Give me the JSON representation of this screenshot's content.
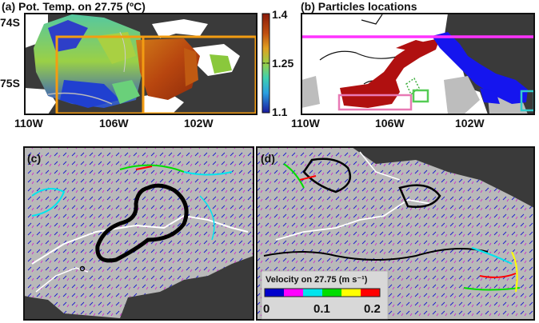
{
  "panels": {
    "a": {
      "title": "(a) Pot. Temp. on 27.75 (ºC)",
      "lat_ticks": [
        "74S",
        "75S"
      ],
      "lon_ticks": [
        "110W",
        "106W",
        "102W"
      ],
      "colorbar": {
        "ticks": [
          "1.4",
          "1.25",
          "1.1"
        ],
        "range": [
          1.1,
          1.4
        ]
      },
      "box_color": "#f39c12"
    },
    "b": {
      "title": "(b) Particles locations",
      "lon_ticks": [
        "110W",
        "106W",
        "102W"
      ],
      "colors": {
        "line": "#ff33ff",
        "red": "#b01010",
        "blue": "#1515ee",
        "green": "#33aa33",
        "pink_box": "#e87ab5",
        "green_box": "#55cc55",
        "cyan_box": "#33cccc"
      }
    },
    "c": {
      "title": "(c)"
    },
    "d": {
      "title": "(d)",
      "legend": {
        "title": "Velocity on 27.75 (m s⁻¹)",
        "ticks": [
          "0",
          "0.1",
          "0.2"
        ],
        "range": [
          0,
          0.2
        ],
        "colors": [
          "#0000cc",
          "#ff00ff",
          "#00e5ee",
          "#00dd00",
          "#ffff00",
          "#ff0000"
        ]
      }
    }
  }
}
